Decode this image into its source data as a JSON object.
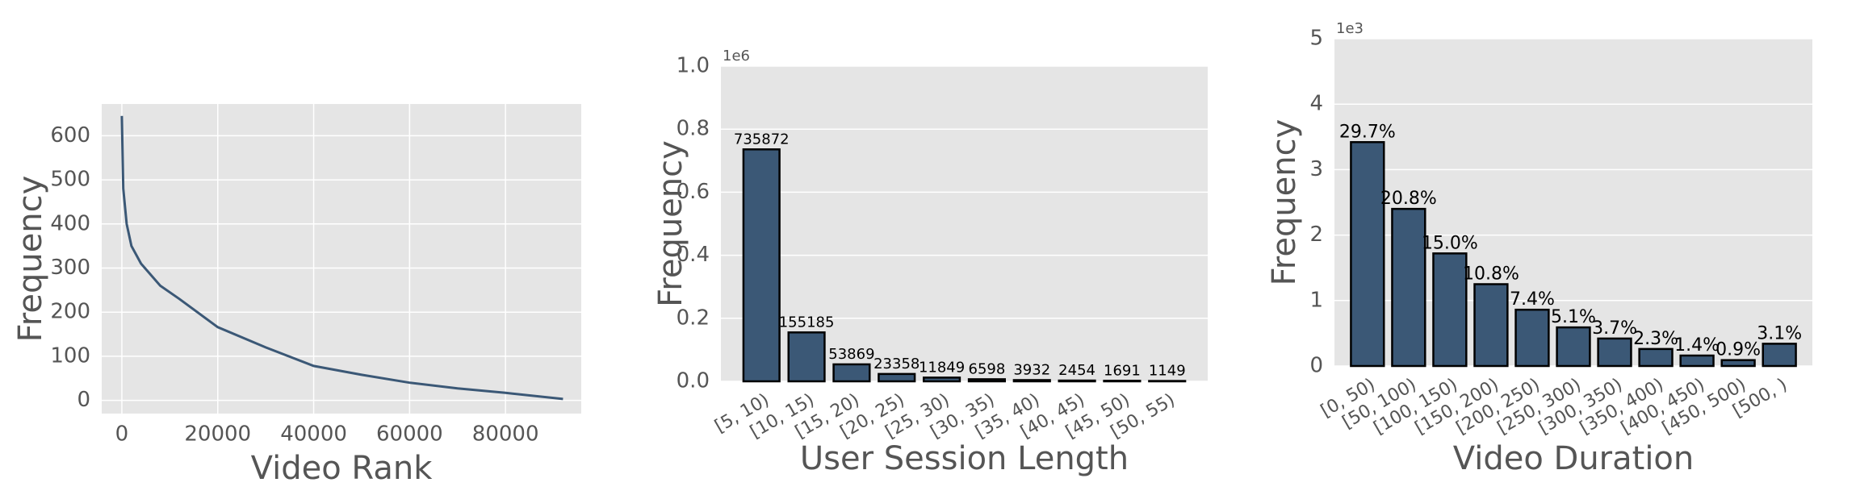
{
  "chart_data": [
    {
      "type": "line",
      "x_label": "Video Rank",
      "y_label": "Frequency",
      "color": "#3b5876",
      "grid": true,
      "x": [
        0,
        300,
        1000,
        2000,
        4000,
        8000,
        12000,
        20000,
        30000,
        40000,
        50000,
        60000,
        70000,
        80000,
        92000
      ],
      "y": [
        645,
        480,
        400,
        350,
        310,
        260,
        230,
        166,
        120,
        78,
        58,
        40,
        27,
        17,
        3
      ],
      "xlim": [
        -4200,
        95800
      ],
      "ylim": [
        -30,
        672
      ],
      "xticks": [
        0,
        20000,
        40000,
        60000,
        80000
      ],
      "yticks": [
        0,
        100,
        200,
        300,
        400,
        500,
        600
      ]
    },
    {
      "type": "bar",
      "x_label": "User Session Length",
      "y_label": "Frequency",
      "y_offset_label": "1e6",
      "color": "#3b5876",
      "grid": true,
      "categories": [
        "[5, 10)",
        "[10, 15)",
        "[15, 20)",
        "[20, 25)",
        "[25, 30)",
        "[30, 35)",
        "[35, 40)",
        "[40, 45)",
        "[45, 50)",
        "[50, 55)"
      ],
      "values": [
        0.735872,
        0.155185,
        0.053869,
        0.023358,
        0.011849,
        0.006598,
        0.003932,
        0.002454,
        0.001691,
        0.001149
      ],
      "value_labels": [
        "735872",
        "155185",
        "53869",
        "23358",
        "11849",
        "6598",
        "3932",
        "2454",
        "1691",
        "1149"
      ],
      "ylim": [
        0,
        1.0
      ],
      "yticks": [
        {
          "value": 0,
          "label": "0.0"
        },
        0.2,
        0.4,
        0.6,
        0.8,
        {
          "value": 1,
          "label": "1.0"
        }
      ]
    },
    {
      "type": "bar",
      "x_label": "Video Duration",
      "y_label": "Frequency",
      "y_offset_label": "1e3",
      "color": "#3b5876",
      "grid": true,
      "categories": [
        "[0, 50)",
        "[50, 100)",
        "[100, 150)",
        "[150, 200)",
        "[200, 250)",
        "[250, 300)",
        "[300, 350)",
        "[350, 400)",
        "[400, 450)",
        "[450, 500)",
        "[500, )"
      ],
      "values": [
        3.42,
        2.4,
        1.72,
        1.25,
        0.86,
        0.59,
        0.42,
        0.26,
        0.16,
        0.09,
        0.34
      ],
      "shares": [
        29.7,
        20.8,
        15.0,
        10.8,
        7.4,
        5.1,
        3.7,
        2.3,
        1.4,
        0.9,
        3.1
      ],
      "share_labels": [
        "29.7%",
        "20.8%",
        "15.0%",
        "10.8%",
        "7.4%",
        "5.1%",
        "3.7%",
        "2.3%",
        "1.4%",
        "0.9%",
        "3.1%"
      ],
      "ylim": [
        0,
        5
      ],
      "yticks": [
        0,
        1,
        2,
        3,
        4,
        5
      ]
    }
  ]
}
